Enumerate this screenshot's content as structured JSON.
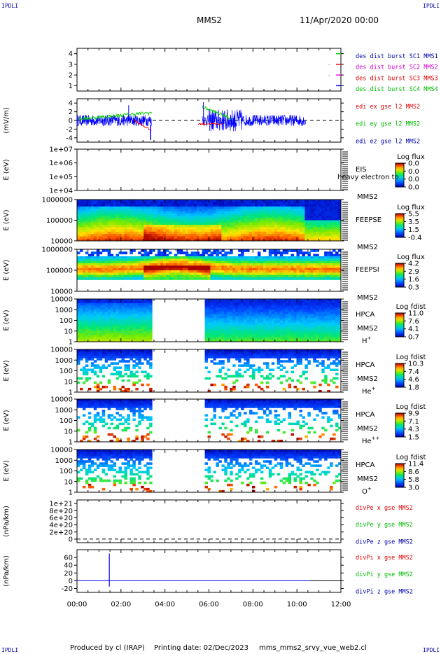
{
  "corner_label": "IPDLI",
  "header": {
    "spacecraft": "MMS2",
    "datetime": "11/Apr/2020 00:00"
  },
  "footer": {
    "produced": "Produced by cl (IRAP)",
    "printing": "Printing date: 02/Dec/2023",
    "file": "mms_mms2_srvy_vue_web2.cl"
  },
  "colors": {
    "c1": "#0000ff",
    "c2": "#ff00ff",
    "c3": "#ff0000",
    "c4": "#00cc00",
    "text_blue": "#000099",
    "text_red": "#dd0000",
    "text_green": "#00bb00"
  },
  "chart_data": [
    {
      "id": "burst",
      "type": "line",
      "ylim": [
        0.5,
        4.5
      ],
      "yticks": [
        "1",
        "2",
        "3",
        "4"
      ],
      "ytick_vals": [
        1,
        2,
        3,
        4
      ],
      "legend": [
        {
          "text": "des dist burst SC1 MMS1",
          "color": "#0000aa"
        },
        {
          "text": "des dist burst SC2 MMS2",
          "color": "#cc00cc"
        },
        {
          "text": "des dist burst SC3 MMS3",
          "color": "#dd0000"
        },
        {
          "text": "des dist burst SC4 MMS4",
          "color": "#00bb00"
        }
      ]
    },
    {
      "id": "edi",
      "type": "line",
      "ylabel": "(mV/m)",
      "ylim": [
        -5,
        5
      ],
      "yticks": [
        "4",
        "2",
        "0",
        "-2",
        "-4"
      ],
      "ytick_vals": [
        4,
        2,
        0,
        -2,
        -4
      ],
      "legend": [
        {
          "text": "edi ex gse l2 MMS2",
          "color": "#dd0000"
        },
        {
          "text": "edi ey gse l2 MMS2",
          "color": "#00bb00"
        },
        {
          "text": "edi ez gse l2 MMS2",
          "color": "#0000aa"
        }
      ]
    },
    {
      "id": "eis",
      "type": "heatmap",
      "ylabel": "E (eV)",
      "yticks": [
        "1e+07",
        "1e+06",
        "1e+05",
        "1e+04"
      ],
      "labels": [
        "EIS",
        "MMS2"
      ],
      "overlay": "heavy electron to",
      "cb_title": "Log flux",
      "cb_ticks": [
        "0.0",
        "0.0",
        "0.0",
        "0.0"
      ]
    },
    {
      "id": "feepse",
      "type": "heatmap",
      "ylabel": "E (eV)",
      "yticks": [
        "1000000",
        "100000",
        "10000"
      ],
      "labels": [
        "FEEPSE",
        "MMS2"
      ],
      "cb_title": "Log flux",
      "cb_ticks": [
        "5.5",
        "3.5",
        "1.5",
        "-0.4"
      ]
    },
    {
      "id": "feepsi",
      "type": "heatmap",
      "ylabel": "E (eV)",
      "yticks": [
        "1000000",
        "100000",
        "10000"
      ],
      "labels": [
        "FEEPSI",
        "MMS2"
      ],
      "cb_title": "Log flux",
      "cb_ticks": [
        "4.2",
        "2.9",
        "1.6",
        "0.3"
      ]
    },
    {
      "id": "hpca_h",
      "type": "heatmap",
      "ylabel": "E (eV)",
      "yticks": [
        "10000",
        "1000",
        "100",
        "10",
        "1"
      ],
      "labels": [
        "HPCA",
        "MMS2"
      ],
      "species": "H",
      "species_sup": "+",
      "cb_title": "Log fdist",
      "cb_ticks": [
        "11.0",
        "7.6",
        "4.1",
        "0.7"
      ]
    },
    {
      "id": "hpca_he",
      "type": "heatmap",
      "ylabel": "E (eV)",
      "yticks": [
        "10000",
        "1000",
        "100",
        "10",
        "1"
      ],
      "labels": [
        "HPCA",
        "MMS2"
      ],
      "species": "He",
      "species_sup": "+",
      "cb_title": "Log fdist",
      "cb_ticks": [
        "10.3",
        "7.4",
        "4.6",
        "1.8"
      ]
    },
    {
      "id": "hpca_hepp",
      "type": "heatmap",
      "ylabel": "E (eV)",
      "yticks": [
        "10000",
        "1000",
        "100",
        "10",
        "1"
      ],
      "labels": [
        "HPCA",
        "MMS2"
      ],
      "species": "He",
      "species_sup": "++",
      "cb_title": "Log fdist",
      "cb_ticks": [
        "9.9",
        "7.1",
        "4.3",
        "1.5"
      ]
    },
    {
      "id": "hpca_o",
      "type": "heatmap",
      "ylabel": "E (eV)",
      "yticks": [
        "10000",
        "1000",
        "100",
        "10",
        "1"
      ],
      "labels": [
        "HPCA",
        "MMS2"
      ],
      "species": "O",
      "species_sup": "+",
      "cb_title": "Log fdist",
      "cb_ticks": [
        "11.4",
        "8.6",
        "5.8",
        "3.0"
      ]
    },
    {
      "id": "divpe",
      "type": "line",
      "ylabel": "(nPa/km)",
      "ylim": [
        -1e+20,
        1.1e+21
      ],
      "yticks": [
        "1e+21",
        "8e+20",
        "6e+20",
        "4e+20",
        "2e+20",
        "0"
      ],
      "ytick_vals": [
        1e+21,
        8e+20,
        6e+20,
        4e+20,
        2e+20,
        0
      ],
      "legend": [
        {
          "text": "divPe x gse MMS2",
          "color": "#dd0000"
        },
        {
          "text": "divPe y gse MMS2",
          "color": "#00bb00"
        },
        {
          "text": "divPe z gse MMS2",
          "color": "#0000aa"
        }
      ]
    },
    {
      "id": "divpi",
      "type": "line",
      "ylabel": "(nPa/km)",
      "ylim": [
        -30,
        80
      ],
      "yticks": [
        "60",
        "40",
        "20",
        "0",
        "-20"
      ],
      "ytick_vals": [
        60,
        40,
        20,
        0,
        -20
      ],
      "legend": [
        {
          "text": "divPi x gse MMS2",
          "color": "#dd0000"
        },
        {
          "text": "divPi y gse MMS2",
          "color": "#00bb00"
        },
        {
          "text": "divPi z gse MMS2",
          "color": "#0000aa"
        }
      ],
      "spike": {
        "x_hours": 1.47,
        "y_min": -15,
        "y_max": 70
      }
    }
  ],
  "time_axis": {
    "xlim_hours": [
      0,
      12
    ],
    "ticks": [
      "00:00",
      "02:00",
      "04:00",
      "06:00",
      "08:00",
      "10:00",
      "12:00"
    ],
    "tick_hours": [
      0,
      2,
      4,
      6,
      8,
      10,
      12
    ]
  }
}
